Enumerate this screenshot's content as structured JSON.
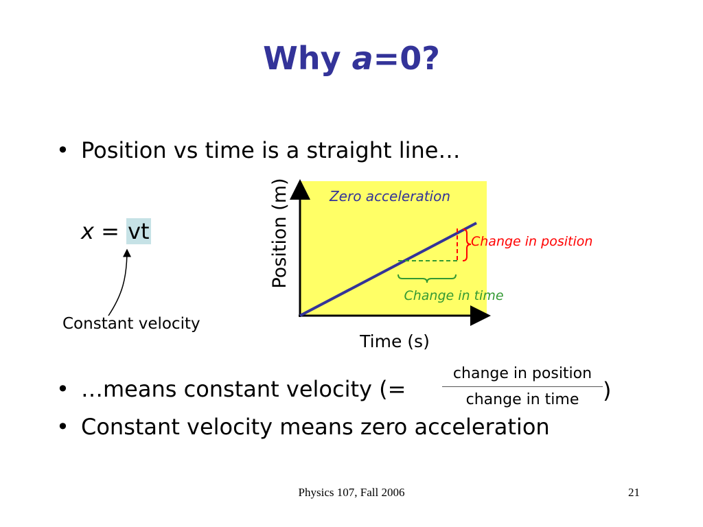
{
  "slide": {
    "title_prefix": "Why ",
    "title_var": "a",
    "title_suffix": "=0?",
    "bullets": {
      "b1": "Position vs time is a straight line…",
      "b2": "…means constant velocity (=",
      "b3": "Constant velocity means zero acceleration",
      "bullet_char": "•"
    },
    "equation": {
      "var": "x",
      "equals": " = ",
      "rhs": "vt"
    },
    "constant_velocity_label": "Constant velocity",
    "fraction": {
      "numerator": "change in position",
      "denominator": "change in time",
      "close_paren": ")"
    },
    "footer": {
      "course": "Physics 107, Fall 2006",
      "page": "21"
    }
  },
  "chart_data": {
    "type": "line",
    "title": "",
    "xlabel": "Time (s)",
    "ylabel": "Position (m)",
    "annotations": {
      "inside_label": "Zero acceleration",
      "change_position": "Change in position",
      "change_time": "Change in time"
    },
    "series": [
      {
        "x": [
          0,
          1
        ],
        "y": [
          0,
          1
        ]
      }
    ],
    "grid": false,
    "colors": {
      "plot_bg": "#ffff66",
      "line": "#333399",
      "change_position": "#ff0000",
      "change_time": "#339933",
      "inside_label": "#333399",
      "axes": "#000000"
    }
  }
}
